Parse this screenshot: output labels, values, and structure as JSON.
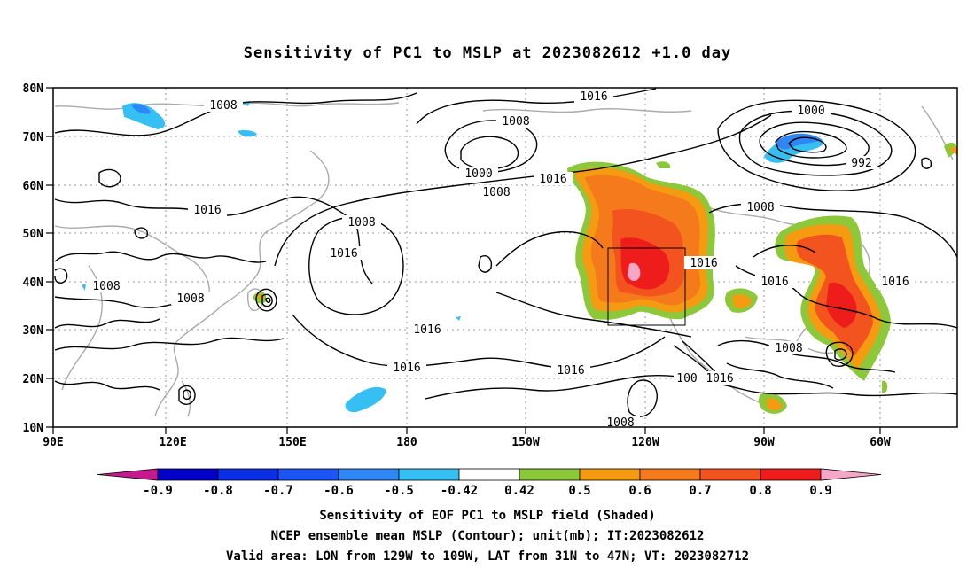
{
  "title": "Sensitivity of PC1 to MSLP at 2023082612 +1.0 day",
  "lat_labels": [
    "80N",
    "70N",
    "60N",
    "50N",
    "40N",
    "30N",
    "20N",
    "10N"
  ],
  "lon_labels": [
    "90E",
    "120E",
    "150E",
    "180",
    "150W",
    "120W",
    "90W",
    "60W"
  ],
  "contour_labels": [
    {
      "text": "1008"
    },
    {
      "text": "1016"
    },
    {
      "text": "1008"
    },
    {
      "text": "1000"
    },
    {
      "text": "1008"
    },
    {
      "text": "1016"
    },
    {
      "text": "1008"
    },
    {
      "text": "1016"
    },
    {
      "text": "1000"
    },
    {
      "text": "992"
    },
    {
      "text": "1008"
    },
    {
      "text": "1016"
    },
    {
      "text": "1016"
    },
    {
      "text": "1016"
    },
    {
      "text": "1008"
    },
    {
      "text": "1008"
    },
    {
      "text": "1016"
    },
    {
      "text": "1016"
    },
    {
      "text": "1016"
    },
    {
      "text": "1008"
    },
    {
      "text": "1016"
    },
    {
      "text": "100"
    },
    {
      "text": "1016"
    },
    {
      "text": "1008"
    },
    {
      "text": "1016"
    }
  ],
  "colorbar": {
    "labels": [
      "-0.9",
      "-0.8",
      "-0.7",
      "-0.6",
      "-0.5",
      "-0.42",
      "0.42",
      "0.5",
      "0.6",
      "0.7",
      "0.8",
      "0.9"
    ],
    "colors": [
      "#0000c8",
      "#0a2fe6",
      "#1c55f5",
      "#2f86f5",
      "#36bff2",
      "#ffffff",
      "#8dc83a",
      "#f59b12",
      "#f47a1c",
      "#f3531f",
      "#ef1c1c"
    ],
    "low_end_color": "#c41a8e",
    "high_end_color": "#f6a7c8"
  },
  "captions": [
    "Sensitivity of EOF PC1 to MSLP field (Shaded)",
    "NCEP ensemble mean MSLP (Contour); unit(mb); IT:2023082612",
    "Valid area: LON from 129W to 109W, LAT from 31N to 47N; VT: 2023082712"
  ]
}
